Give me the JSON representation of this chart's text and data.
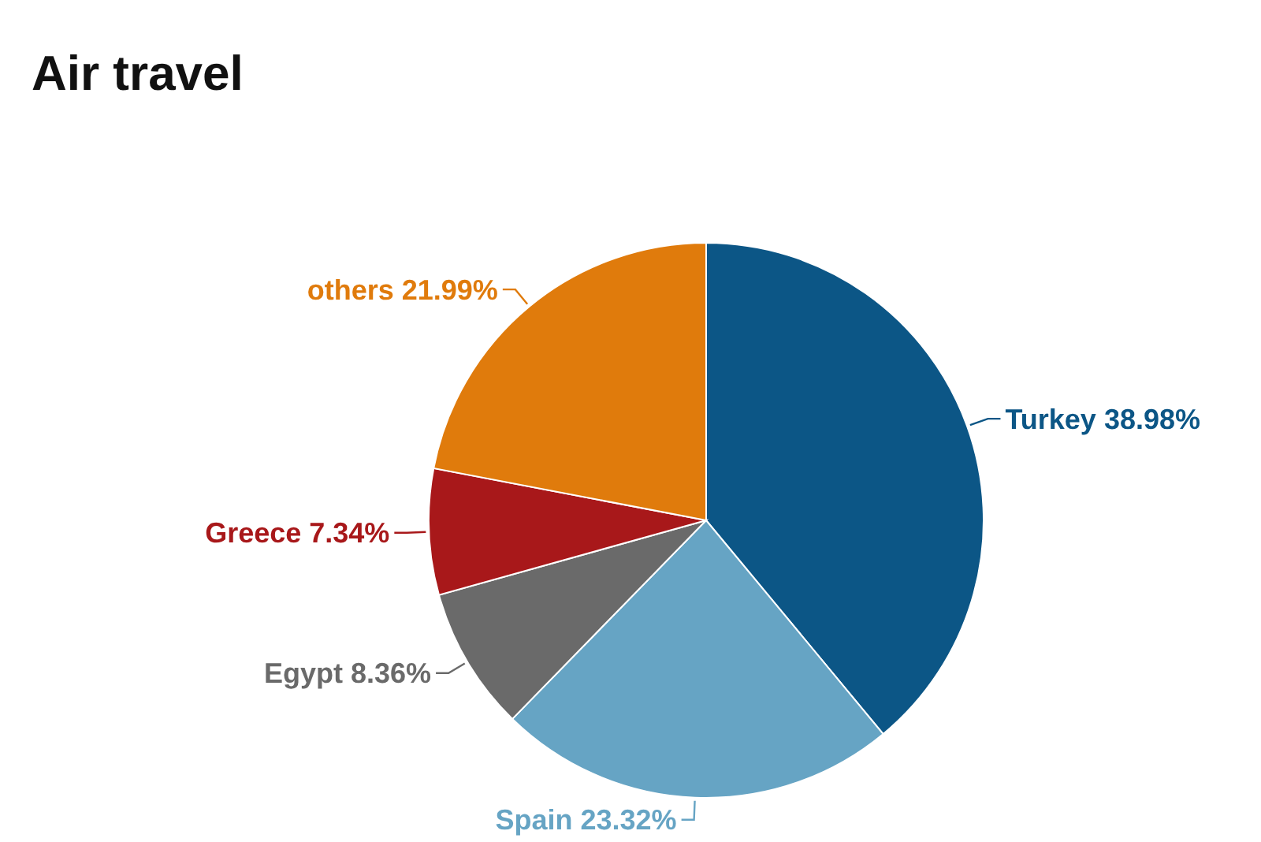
{
  "chart_data": {
    "type": "pie",
    "title": "Air travel",
    "categories": [
      "Turkey",
      "Spain",
      "Egypt",
      "Greece",
      "others"
    ],
    "values": [
      38.98,
      23.32,
      8.36,
      7.34,
      21.99
    ],
    "value_labels": [
      "38.98%",
      "23.32%",
      "8.36%",
      "7.34%",
      "21.99%"
    ],
    "colors": [
      "#0c5686",
      "#66a4c4",
      "#6a6a6a",
      "#a8181a",
      "#e07b0c"
    ],
    "legend": false
  }
}
